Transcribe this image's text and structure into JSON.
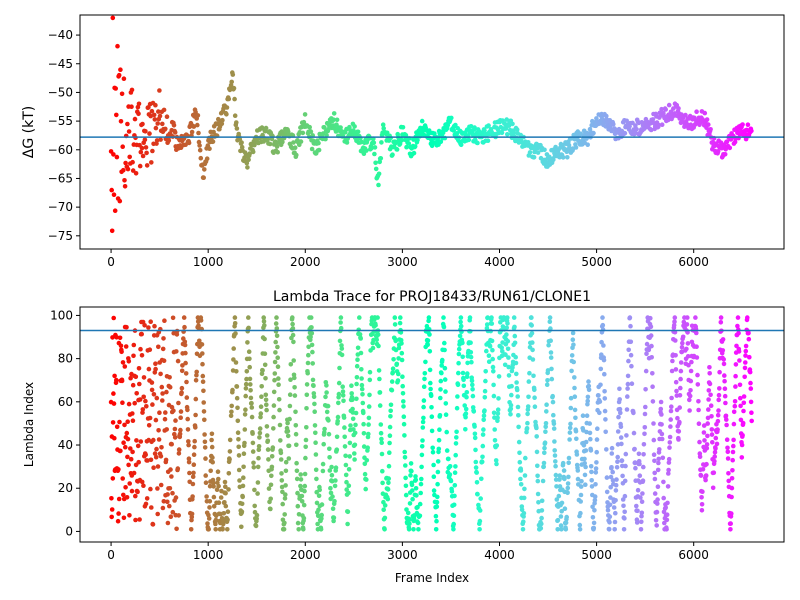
{
  "chart_data": [
    {
      "type": "scatter",
      "title": "",
      "xlabel": "",
      "ylabel": "ΔG (kT)",
      "xlim": [
        -320,
        6930
      ],
      "ylim": [
        -77.3,
        -36.5
      ],
      "xticks": [
        0,
        1000,
        2000,
        3000,
        4000,
        5000,
        6000
      ],
      "yticks": [
        -75,
        -70,
        -65,
        -60,
        -55,
        -50,
        -45,
        -40
      ],
      "hline": -57.8,
      "hline_color": "#1f77b4",
      "colormap": "rainbow (reversed: red at frame 0, violet at last frame)",
      "n_frames": 6600,
      "trace_keypoints": {
        "x": [
          200,
          300,
          400,
          500,
          600,
          700,
          800,
          880,
          950,
          1000,
          1100,
          1200,
          1250,
          1300,
          1400,
          1500,
          1600,
          1700,
          1800,
          1900,
          2000,
          2100,
          2200,
          2300,
          2400,
          2500,
          2600,
          2700,
          2750,
          2800,
          2900,
          3000,
          3100,
          3200,
          3300,
          3400,
          3500,
          3600,
          3700,
          3800,
          3900,
          4000,
          4100,
          4200,
          4300,
          4400,
          4500,
          4600,
          4700,
          4800,
          4900,
          5000,
          5100,
          5200,
          5300,
          5400,
          5500,
          5600,
          5700,
          5800,
          5900,
          6000,
          6100,
          6200,
          6300,
          6400,
          6500,
          6600
        ],
        "y": [
          -55,
          -58,
          -57,
          -54,
          -56,
          -59,
          -58,
          -53,
          -65,
          -59,
          -56,
          -52,
          -47,
          -58,
          -62,
          -58,
          -57,
          -60,
          -56,
          -60,
          -55,
          -60,
          -57,
          -55,
          -58,
          -56,
          -60,
          -58,
          -66,
          -56,
          -60,
          -57,
          -60,
          -56,
          -58,
          -58,
          -55,
          -58,
          -57,
          -58,
          -57,
          -56,
          -56,
          -58,
          -60,
          -60,
          -62,
          -60,
          -60,
          -58,
          -58,
          -55,
          -55,
          -57,
          -56,
          -56,
          -56,
          -55,
          -54,
          -53,
          -55,
          -55,
          -54,
          -59,
          -60,
          -58,
          -57,
          -57
        ]
      }
    },
    {
      "type": "scatter",
      "title": "Lambda Trace for PROJ18433/RUN61/CLONE1",
      "xlabel": "Frame Index",
      "ylabel": "Lambda Index",
      "xlim": [
        -320,
        6930
      ],
      "ylim": [
        -4.9,
        103.9
      ],
      "xticks": [
        0,
        1000,
        2000,
        3000,
        4000,
        5000,
        6000
      ],
      "yticks": [
        0,
        20,
        40,
        60,
        80,
        100
      ],
      "hline": 93,
      "hline_color": "#1f77b4",
      "colormap": "rainbow (reversed: red at frame 0, violet at last frame)",
      "n_frames": 6600,
      "lambda_range": [
        1,
        99
      ]
    }
  ]
}
